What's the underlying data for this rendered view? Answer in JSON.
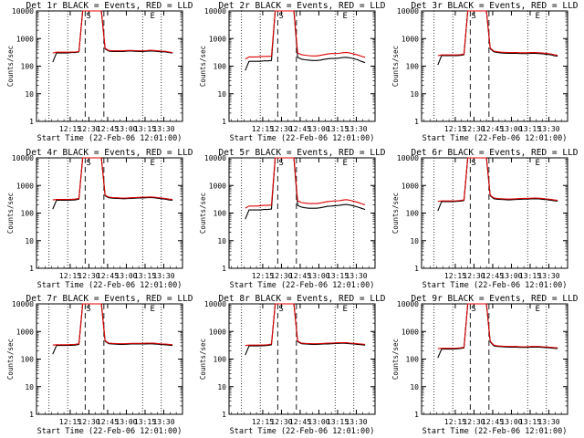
{
  "colors": {
    "events": "#000000",
    "lld": "#dd0000",
    "axis": "#000000"
  },
  "common": {
    "xlabel": "Start Time (22-Feb-06 12:01:00)",
    "ylabel": "Counts/sec",
    "xticks": [
      "12:15",
      "12:30",
      "12:45",
      "13:00",
      "13:15",
      "13:30"
    ],
    "yticks": [
      "1",
      "10",
      "100",
      "1000",
      "10000"
    ],
    "markers": [
      "S",
      "E"
    ]
  },
  "chart_data": [
    {
      "type": "line",
      "title": "Det 1r BLACK = Events, RED = LLD",
      "x_minutes": [
        0,
        3,
        6,
        9,
        12,
        15,
        18,
        21,
        24,
        27,
        30,
        33,
        36,
        39,
        42,
        45,
        48,
        51,
        54,
        57,
        60,
        63,
        66,
        69,
        72,
        75,
        78,
        81,
        84,
        87,
        90,
        93,
        96
      ],
      "ylim": [
        1,
        10000
      ],
      "yscale": "log",
      "grid": false,
      "series": [
        {
          "values": [
            140,
            300,
            300,
            300,
            300,
            310,
            310,
            330,
            10000,
            10000,
            10000,
            10000,
            10000,
            10000,
            420,
            350,
            340,
            340,
            340,
            340,
            350,
            350,
            345,
            340,
            340,
            345,
            350,
            350,
            340,
            330,
            330,
            310,
            300
          ]
        },
        {
          "values": [
            300,
            320,
            320,
            320,
            320,
            325,
            325,
            340,
            10000,
            10000,
            10000,
            10000,
            10000,
            10000,
            440,
            370,
            360,
            360,
            360,
            360,
            370,
            370,
            365,
            360,
            360,
            365,
            375,
            370,
            360,
            350,
            345,
            325,
            310
          ]
        }
      ]
    },
    {
      "type": "line",
      "title": "Det 2r BLACK = Events, RED = LLD",
      "x_minutes": [
        0,
        3,
        6,
        9,
        12,
        15,
        18,
        21,
        24,
        27,
        30,
        33,
        36,
        39,
        42,
        45,
        48,
        51,
        54,
        57,
        60,
        63,
        66,
        69,
        72,
        75,
        78,
        81,
        84,
        87,
        90,
        93,
        96
      ],
      "ylim": [
        1,
        10000
      ],
      "yscale": "log",
      "grid": false,
      "series": [
        {
          "values": [
            70,
            150,
            150,
            150,
            150,
            155,
            155,
            160,
            10000,
            10000,
            10000,
            10000,
            10000,
            10000,
            210,
            180,
            170,
            165,
            160,
            160,
            165,
            175,
            185,
            190,
            190,
            195,
            205,
            210,
            200,
            185,
            170,
            150,
            135
          ]
        },
        {
          "values": [
            180,
            215,
            215,
            215,
            220,
            225,
            225,
            230,
            10000,
            10000,
            10000,
            10000,
            10000,
            10000,
            300,
            260,
            250,
            240,
            235,
            235,
            245,
            260,
            275,
            285,
            285,
            290,
            305,
            315,
            300,
            275,
            255,
            230,
            210
          ]
        }
      ]
    },
    {
      "type": "line",
      "title": "Det 3r BLACK = Events, RED = LLD",
      "x_minutes": [
        0,
        3,
        6,
        9,
        12,
        15,
        18,
        21,
        24,
        27,
        30,
        33,
        36,
        39,
        42,
        45,
        48,
        51,
        54,
        57,
        60,
        63,
        66,
        69,
        72,
        75,
        78,
        81,
        84,
        87,
        90,
        93,
        96
      ],
      "ylim": [
        1,
        10000
      ],
      "yscale": "log",
      "grid": false,
      "series": [
        {
          "values": [
            110,
            240,
            240,
            240,
            240,
            240,
            245,
            260,
            10000,
            10000,
            10000,
            10000,
            10000,
            10000,
            430,
            330,
            310,
            300,
            295,
            290,
            290,
            290,
            285,
            285,
            285,
            290,
            290,
            285,
            280,
            270,
            260,
            240,
            230
          ]
        },
        {
          "values": [
            240,
            255,
            255,
            255,
            255,
            255,
            260,
            275,
            10000,
            10000,
            10000,
            10000,
            10000,
            10000,
            450,
            350,
            330,
            320,
            315,
            310,
            310,
            310,
            305,
            305,
            305,
            310,
            310,
            305,
            300,
            290,
            280,
            260,
            250
          ]
        }
      ]
    },
    {
      "type": "line",
      "title": "Det 4r BLACK = Events, RED = LLD",
      "x_minutes": [
        0,
        3,
        6,
        9,
        12,
        15,
        18,
        21,
        24,
        27,
        30,
        33,
        36,
        39,
        42,
        45,
        48,
        51,
        54,
        57,
        60,
        63,
        66,
        69,
        72,
        75,
        78,
        81,
        84,
        87,
        90,
        93,
        96
      ],
      "ylim": [
        1,
        10000
      ],
      "yscale": "log",
      "grid": false,
      "series": [
        {
          "values": [
            140,
            290,
            290,
            290,
            290,
            295,
            300,
            320,
            10000,
            10000,
            10000,
            10000,
            10000,
            10000,
            420,
            360,
            345,
            340,
            335,
            330,
            335,
            340,
            345,
            350,
            355,
            360,
            365,
            360,
            345,
            330,
            320,
            300,
            290
          ]
        },
        {
          "values": [
            300,
            310,
            310,
            310,
            310,
            315,
            320,
            340,
            10000,
            10000,
            10000,
            10000,
            10000,
            10000,
            440,
            380,
            365,
            360,
            355,
            350,
            355,
            360,
            365,
            370,
            375,
            380,
            385,
            380,
            365,
            350,
            340,
            320,
            310
          ]
        }
      ]
    },
    {
      "type": "line",
      "title": "Det 5r BLACK = Events, RED = LLD",
      "x_minutes": [
        0,
        3,
        6,
        9,
        12,
        15,
        18,
        21,
        24,
        27,
        30,
        33,
        36,
        39,
        42,
        45,
        48,
        51,
        54,
        57,
        60,
        63,
        66,
        69,
        72,
        75,
        78,
        81,
        84,
        87,
        90,
        93,
        96
      ],
      "ylim": [
        1,
        10000
      ],
      "yscale": "log",
      "grid": false,
      "series": [
        {
          "values": [
            60,
            130,
            130,
            130,
            130,
            135,
            135,
            140,
            10000,
            10000,
            10000,
            10000,
            10000,
            10000,
            190,
            165,
            155,
            150,
            150,
            150,
            155,
            165,
            175,
            180,
            185,
            190,
            200,
            205,
            195,
            180,
            165,
            150,
            135
          ]
        },
        {
          "values": [
            150,
            180,
            180,
            180,
            185,
            190,
            190,
            195,
            10000,
            10000,
            10000,
            10000,
            10000,
            10000,
            280,
            240,
            230,
            220,
            220,
            220,
            230,
            245,
            260,
            270,
            275,
            280,
            295,
            305,
            290,
            265,
            245,
            220,
            200
          ]
        }
      ]
    },
    {
      "type": "line",
      "title": "Det 6r BLACK = Events, RED = LLD",
      "x_minutes": [
        0,
        3,
        6,
        9,
        12,
        15,
        18,
        21,
        24,
        27,
        30,
        33,
        36,
        39,
        42,
        45,
        48,
        51,
        54,
        57,
        60,
        63,
        66,
        69,
        72,
        75,
        78,
        81,
        84,
        87,
        90,
        93,
        96
      ],
      "ylim": [
        1,
        10000
      ],
      "yscale": "log",
      "grid": false,
      "series": [
        {
          "values": [
            120,
            260,
            260,
            260,
            260,
            265,
            270,
            285,
            10000,
            10000,
            10000,
            10000,
            10000,
            10000,
            420,
            330,
            315,
            310,
            305,
            300,
            305,
            310,
            315,
            320,
            320,
            325,
            330,
            325,
            315,
            305,
            295,
            280,
            270
          ]
        },
        {
          "values": [
            265,
            275,
            275,
            275,
            275,
            280,
            285,
            300,
            10000,
            10000,
            10000,
            10000,
            10000,
            10000,
            440,
            350,
            335,
            330,
            325,
            320,
            325,
            330,
            335,
            340,
            340,
            345,
            350,
            345,
            335,
            325,
            315,
            300,
            290
          ]
        }
      ]
    },
    {
      "type": "line",
      "title": "Det 7r BLACK = Events, RED = LLD",
      "x_minutes": [
        0,
        3,
        6,
        9,
        12,
        15,
        18,
        21,
        24,
        27,
        30,
        33,
        36,
        39,
        42,
        45,
        48,
        51,
        54,
        57,
        60,
        63,
        66,
        69,
        72,
        75,
        78,
        81,
        84,
        87,
        90,
        93,
        96
      ],
      "ylim": [
        1,
        10000
      ],
      "yscale": "log",
      "grid": false,
      "series": [
        {
          "values": [
            150,
            310,
            310,
            310,
            310,
            315,
            320,
            340,
            10000,
            10000,
            10000,
            10000,
            10000,
            10000,
            440,
            360,
            350,
            345,
            340,
            340,
            345,
            350,
            350,
            350,
            350,
            355,
            360,
            355,
            345,
            335,
            330,
            320,
            310
          ]
        },
        {
          "values": [
            320,
            330,
            330,
            330,
            330,
            335,
            340,
            360,
            10000,
            10000,
            10000,
            10000,
            10000,
            10000,
            460,
            380,
            370,
            365,
            360,
            360,
            365,
            370,
            370,
            370,
            370,
            375,
            380,
            375,
            365,
            355,
            350,
            340,
            330
          ]
        }
      ]
    },
    {
      "type": "line",
      "title": "Det 8r BLACK = Events, RED = LLD",
      "x_minutes": [
        0,
        3,
        6,
        9,
        12,
        15,
        18,
        21,
        24,
        27,
        30,
        33,
        36,
        39,
        42,
        45,
        48,
        51,
        54,
        57,
        60,
        63,
        66,
        69,
        72,
        75,
        78,
        81,
        84,
        87,
        90,
        93,
        96
      ],
      "ylim": [
        1,
        10000
      ],
      "yscale": "log",
      "grid": false,
      "series": [
        {
          "values": [
            140,
            300,
            300,
            300,
            300,
            305,
            310,
            330,
            10000,
            10000,
            10000,
            10000,
            10000,
            10000,
            430,
            360,
            350,
            345,
            340,
            340,
            345,
            350,
            355,
            360,
            365,
            370,
            375,
            370,
            360,
            350,
            340,
            330,
            320
          ]
        },
        {
          "values": [
            310,
            320,
            320,
            320,
            320,
            325,
            330,
            350,
            10000,
            10000,
            10000,
            10000,
            10000,
            10000,
            450,
            380,
            370,
            365,
            360,
            360,
            365,
            370,
            375,
            380,
            385,
            390,
            395,
            390,
            380,
            370,
            360,
            350,
            340
          ]
        }
      ]
    },
    {
      "type": "line",
      "title": "Det 9r BLACK = Events, RED = LLD",
      "x_minutes": [
        0,
        3,
        6,
        9,
        12,
        15,
        18,
        21,
        24,
        27,
        30,
        33,
        36,
        39,
        42,
        45,
        48,
        51,
        54,
        57,
        60,
        63,
        66,
        69,
        72,
        75,
        78,
        81,
        84,
        87,
        90,
        93,
        96
      ],
      "ylim": [
        1,
        10000
      ],
      "yscale": "log",
      "grid": false,
      "series": [
        {
          "values": [
            110,
            230,
            230,
            230,
            230,
            235,
            240,
            255,
            10000,
            10000,
            10000,
            10000,
            10000,
            10000,
            420,
            300,
            285,
            280,
            275,
            270,
            270,
            270,
            265,
            265,
            265,
            270,
            270,
            270,
            265,
            260,
            255,
            245,
            240
          ]
        },
        {
          "values": [
            240,
            245,
            245,
            245,
            245,
            250,
            255,
            270,
            10000,
            10000,
            10000,
            10000,
            10000,
            10000,
            440,
            320,
            300,
            295,
            290,
            285,
            285,
            285,
            280,
            280,
            280,
            285,
            285,
            285,
            280,
            275,
            270,
            260,
            255
          ]
        }
      ]
    }
  ]
}
